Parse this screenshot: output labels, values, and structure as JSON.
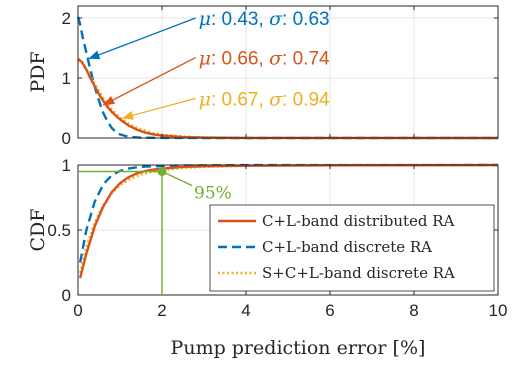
{
  "chart_data": [
    {
      "type": "line",
      "panel": "top",
      "xlabel": "",
      "ylabel": "PDF",
      "xlim": [
        0,
        10
      ],
      "ylim": [
        0,
        2.2
      ],
      "xticks": [
        0,
        2,
        4,
        6,
        8,
        10
      ],
      "yticks": [
        0,
        1,
        2
      ],
      "show_xtick_labels": false,
      "grid": true,
      "series": [
        {
          "key": "dist",
          "color": "#D95319",
          "dash": "solid",
          "x": [
            0,
            0.1,
            0.2,
            0.3,
            0.4,
            0.5,
            0.6,
            0.7,
            0.8,
            0.9,
            1.0,
            1.2,
            1.4,
            1.6,
            1.8,
            2.0,
            2.5,
            3.0,
            4.0,
            6.0,
            10.0
          ],
          "y": [
            1.32,
            1.26,
            1.14,
            0.99,
            0.86,
            0.73,
            0.62,
            0.52,
            0.44,
            0.37,
            0.31,
            0.21,
            0.14,
            0.09,
            0.06,
            0.04,
            0.015,
            0.006,
            0.002,
            0.001,
            0.0
          ]
        },
        {
          "key": "disc",
          "color": "#0072BD",
          "dash": "dashed",
          "x": [
            0,
            0.05,
            0.1,
            0.2,
            0.3,
            0.4,
            0.5,
            0.6,
            0.7,
            0.8,
            0.9,
            1.0,
            1.2,
            1.5,
            2.0,
            3.0,
            10.0
          ],
          "y": [
            2.02,
            1.9,
            1.72,
            1.42,
            1.12,
            0.85,
            0.62,
            0.42,
            0.28,
            0.17,
            0.1,
            0.06,
            0.02,
            0.005,
            0.001,
            0.0,
            0.0
          ]
        },
        {
          "key": "sc",
          "color": "#EDB120",
          "dash": "dotted",
          "x": [
            0,
            0.1,
            0.2,
            0.3,
            0.4,
            0.5,
            0.6,
            0.7,
            0.8,
            0.9,
            1.0,
            1.2,
            1.4,
            1.6,
            1.8,
            2.0,
            2.5,
            3.0,
            4.0,
            6.0,
            10.0
          ],
          "y": [
            1.3,
            1.25,
            1.15,
            1.02,
            0.9,
            0.78,
            0.67,
            0.57,
            0.48,
            0.41,
            0.34,
            0.24,
            0.17,
            0.12,
            0.08,
            0.06,
            0.025,
            0.01,
            0.003,
            0.001,
            0.0
          ]
        }
      ],
      "annotations": [
        {
          "key": "disc",
          "mu_label": "μ",
          "mu": "0.43",
          "sigma_label": "σ",
          "sigma": "0.63",
          "color": "#0072BD",
          "arrow_to": [
            0.25,
            1.32
          ],
          "arrow_from": [
            2.8,
            2.0
          ]
        },
        {
          "key": "dist",
          "mu_label": "μ",
          "mu": "0.66",
          "sigma_label": "σ",
          "sigma": "0.74",
          "color": "#D95319",
          "arrow_to": [
            0.6,
            0.55
          ],
          "arrow_from": [
            2.8,
            1.34
          ]
        },
        {
          "key": "sc",
          "mu_label": "μ",
          "mu": "0.67",
          "sigma_label": "σ",
          "sigma": "0.94",
          "color": "#EDB120",
          "arrow_to": [
            1.05,
            0.33
          ],
          "arrow_from": [
            2.8,
            0.66
          ]
        }
      ]
    },
    {
      "type": "line",
      "panel": "bottom",
      "xlabel": "Pump prediction error [%]",
      "ylabel": "CDF",
      "xlim": [
        0,
        10
      ],
      "ylim": [
        0,
        1.0
      ],
      "xticks": [
        0,
        2,
        4,
        6,
        8,
        10
      ],
      "yticks": [
        0,
        0.5,
        1
      ],
      "ytick_labels": [
        "0",
        "0.5",
        "1"
      ],
      "grid": true,
      "legend_position": "bottom-right",
      "series": [
        {
          "key": "dist",
          "name": "C+L-band distributed RA",
          "color": "#D95319",
          "dash": "solid",
          "x": [
            0.05,
            0.2,
            0.4,
            0.6,
            0.8,
            1.0,
            1.2,
            1.4,
            1.6,
            1.8,
            2.0,
            2.5,
            3.0,
            4.0,
            6.0,
            10.0
          ],
          "y": [
            0.13,
            0.32,
            0.53,
            0.68,
            0.79,
            0.86,
            0.905,
            0.935,
            0.953,
            0.965,
            0.972,
            0.985,
            0.99,
            0.995,
            0.998,
            0.999
          ]
        },
        {
          "key": "disc",
          "name": "C+L-band discrete RA",
          "color": "#0072BD",
          "dash": "dashed",
          "x": [
            0.05,
            0.2,
            0.4,
            0.6,
            0.8,
            1.0,
            1.2,
            1.4,
            1.6,
            2.0,
            2.5,
            3.0,
            4.0,
            10.0
          ],
          "y": [
            0.25,
            0.5,
            0.72,
            0.85,
            0.92,
            0.955,
            0.972,
            0.982,
            0.988,
            0.993,
            0.996,
            0.998,
            0.999,
            1.0
          ]
        },
        {
          "key": "sc",
          "name": "S+C+L-band discrete RA",
          "color": "#EDB120",
          "dash": "dotted",
          "x": [
            0.05,
            0.2,
            0.4,
            0.6,
            0.8,
            1.0,
            1.2,
            1.4,
            1.6,
            1.8,
            2.0,
            2.5,
            3.0,
            4.0,
            6.0,
            10.0
          ],
          "y": [
            0.17,
            0.37,
            0.56,
            0.69,
            0.78,
            0.845,
            0.885,
            0.915,
            0.935,
            0.95,
            0.96,
            0.976,
            0.985,
            0.993,
            0.997,
            0.999
          ]
        }
      ],
      "reference": {
        "label": "95%",
        "x": 2,
        "y": 0.95,
        "color": "#77AC30"
      }
    }
  ]
}
